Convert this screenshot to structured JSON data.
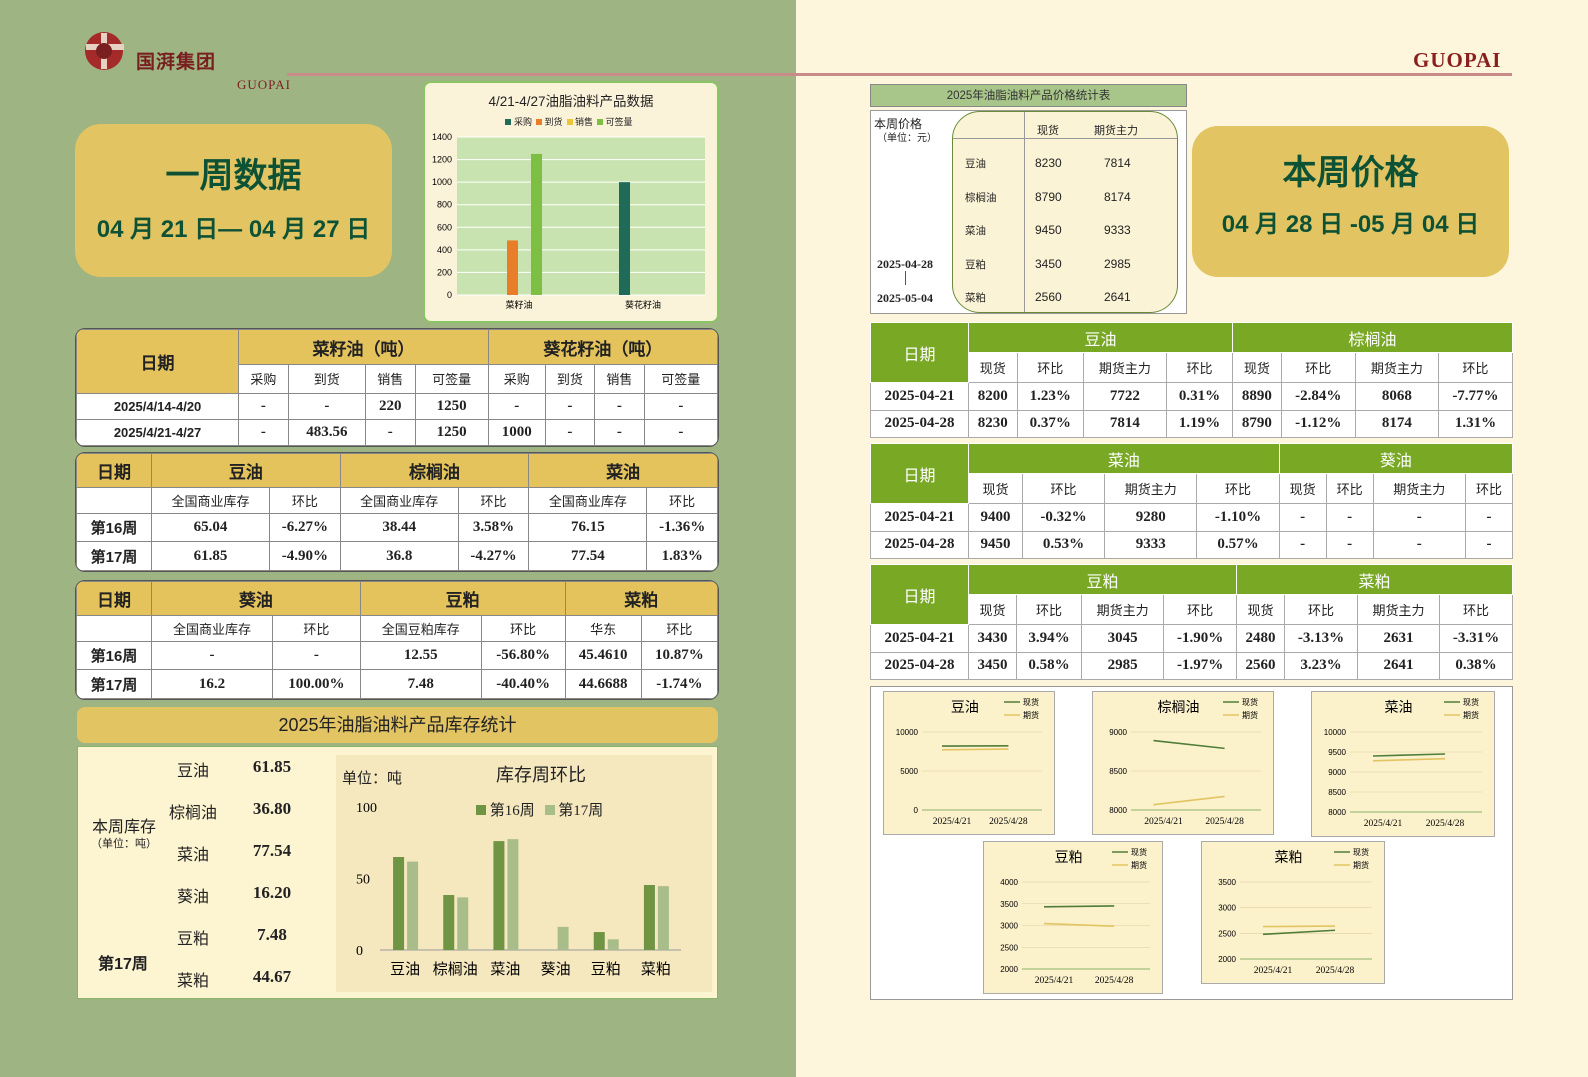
{
  "header": {
    "logo_cn": "国湃集团",
    "logo_en": "GUOPAI",
    "brand": "GUOPAI"
  },
  "left_pill": {
    "title": "一周数据",
    "dates": "04 月 21 日— 04 月 27 日"
  },
  "right_pill": {
    "title": "本周价格",
    "dates": "04 月 28 日 -05 月 04 日"
  },
  "chart_top": {
    "title": "4/21-4/27油脂油料产品数据",
    "legend": [
      "采购",
      "到货",
      "销售",
      "可签量"
    ],
    "yticks": [
      "1400",
      "1200",
      "1000",
      "800",
      "600",
      "400",
      "200",
      "0"
    ],
    "xcats": [
      "菜籽油",
      "葵花籽油"
    ]
  },
  "chart_data": [
    {
      "type": "bar",
      "title": "4/21-4/27油脂油料产品数据",
      "categories": [
        "菜籽油",
        "葵花籽油"
      ],
      "series": [
        {
          "name": "采购",
          "values": [
            0,
            1000
          ]
        },
        {
          "name": "到货",
          "values": [
            483.56,
            0
          ]
        },
        {
          "name": "销售",
          "values": [
            0,
            0
          ]
        },
        {
          "name": "可签量",
          "values": [
            1250,
            0
          ]
        }
      ],
      "ylim": [
        0,
        1400
      ],
      "colors": [
        "#1f6b57",
        "#e87d2a",
        "#f0c23b",
        "#7cbf42"
      ]
    },
    {
      "type": "bar",
      "title": "库存周环比",
      "categories": [
        "豆油",
        "棕榈油",
        "菜油",
        "葵油",
        "豆粕",
        "菜粕"
      ],
      "series": [
        {
          "name": "第16周",
          "values": [
            65.04,
            38.44,
            76.15,
            0,
            12.55,
            45.461
          ]
        },
        {
          "name": "第17周",
          "values": [
            61.85,
            36.8,
            77.54,
            16.2,
            7.48,
            44.6688
          ]
        }
      ],
      "ylim": [
        0,
        100
      ],
      "colors": [
        "#6e9444",
        "#a9bd8a"
      ]
    },
    {
      "type": "line",
      "title": "豆油",
      "x": [
        "2025/4/21",
        "2025/4/28"
      ],
      "series": [
        {
          "name": "现货",
          "values": [
            8200,
            8230
          ]
        },
        {
          "name": "期货",
          "values": [
            7722,
            7814
          ]
        }
      ],
      "ylim": [
        0,
        10000
      ],
      "yticks": [
        "10000",
        "5000",
        "0"
      ]
    },
    {
      "type": "line",
      "title": "棕榈油",
      "x": [
        "2025/4/21",
        "2025/4/28"
      ],
      "series": [
        {
          "name": "现货",
          "values": [
            8890,
            8790
          ]
        },
        {
          "name": "期货",
          "values": [
            8068,
            8174
          ]
        }
      ],
      "ylim": [
        8000,
        9000
      ],
      "yticks": [
        "9000",
        "8500",
        "8000"
      ]
    },
    {
      "type": "line",
      "title": "菜油",
      "x": [
        "2025/4/21",
        "2025/4/28"
      ],
      "series": [
        {
          "name": "现货",
          "values": [
            9400,
            9450
          ]
        },
        {
          "name": "期货",
          "values": [
            9280,
            9333
          ]
        }
      ],
      "ylim": [
        8000,
        10000
      ],
      "yticks": [
        "10000",
        "9500",
        "9000",
        "8500",
        "8000"
      ]
    },
    {
      "type": "line",
      "title": "豆粕",
      "x": [
        "2025/4/21",
        "2025/4/28"
      ],
      "series": [
        {
          "name": "现货",
          "values": [
            3430,
            3450
          ]
        },
        {
          "name": "期货",
          "values": [
            3045,
            2985
          ]
        }
      ],
      "ylim": [
        2000,
        4000
      ],
      "yticks": [
        "4000",
        "3500",
        "3000",
        "2500",
        "2000"
      ]
    },
    {
      "type": "line",
      "title": "菜粕",
      "x": [
        "2025/4/21",
        "2025/4/28"
      ],
      "series": [
        {
          "name": "现货",
          "values": [
            2480,
            2560
          ]
        },
        {
          "name": "期货",
          "values": [
            2631,
            2641
          ]
        }
      ],
      "ylim": [
        2000,
        3500
      ],
      "yticks": [
        "3500",
        "3000",
        "2500",
        "2000"
      ]
    }
  ],
  "table1": {
    "date_label": "日期",
    "group1": "菜籽油（吨）",
    "group2": "葵花籽油（吨）",
    "subs": [
      "采购",
      "到货",
      "销售",
      "可签量",
      "采购",
      "到货",
      "销售",
      "可签量"
    ],
    "rows": [
      {
        "date": "2025/4/14-4/20",
        "vals": [
          "-",
          "-",
          "220",
          "1250",
          "-",
          "-",
          "-",
          "-"
        ]
      },
      {
        "date": "2025/4/21-4/27",
        "vals": [
          "-",
          "483.56",
          "-",
          "1250",
          "1000",
          "-",
          "-",
          "-"
        ]
      }
    ]
  },
  "table2": {
    "date_label": "日期",
    "groups": [
      "豆油",
      "棕榈油",
      "菜油"
    ],
    "subs": [
      "全国商业库存",
      "环比",
      "全国商业库存",
      "环比",
      "全国商业库存",
      "环比"
    ],
    "rows": [
      {
        "date": "第16周",
        "vals": [
          "65.04",
          "-6.27%",
          "38.44",
          "3.58%",
          "76.15",
          "-1.36%"
        ]
      },
      {
        "date": "第17周",
        "vals": [
          "61.85",
          "-4.90%",
          "36.8",
          "-4.27%",
          "77.54",
          "1.83%"
        ]
      }
    ]
  },
  "table3": {
    "date_label": "日期",
    "groups": [
      "葵油",
      "豆粕",
      "菜粕"
    ],
    "subs": [
      "全国商业库存",
      "环比",
      "全国豆粕库存",
      "环比",
      "华东",
      "环比"
    ],
    "rows": [
      {
        "date": "第16周",
        "vals": [
          "-",
          "-",
          "12.55",
          "-56.80%",
          "45.4610",
          "10.87%"
        ]
      },
      {
        "date": "第17周",
        "vals": [
          "16.2",
          "100.00%",
          "7.48",
          "-40.40%",
          "44.6688",
          "-1.74%"
        ]
      }
    ]
  },
  "stock": {
    "banner": "2025年油脂油料产品库存统计",
    "label1": "本周库存",
    "label1_unit": "（单位：吨）",
    "label2": "第17周",
    "items": [
      {
        "name": "豆油",
        "val": "61.85"
      },
      {
        "name": "棕榈油",
        "val": "36.80"
      },
      {
        "name": "菜油",
        "val": "77.54"
      },
      {
        "name": "葵油",
        "val": "16.20"
      },
      {
        "name": "豆粕",
        "val": "7.48"
      },
      {
        "name": "菜粕",
        "val": "44.67"
      }
    ],
    "chart_title": "库存周环比",
    "unit": "单位：吨",
    "legend": [
      "第16周",
      "第17周"
    ],
    "yticks": [
      "100",
      "50",
      "0"
    ]
  },
  "price_box": {
    "banner": "2025年油脂油料产品价格统计表",
    "label": "本周价格",
    "unit": "（单位：元）",
    "date_from": "2025-04-28",
    "date_to": "2025-05-04",
    "col1": "现货",
    "col2": "期货主力",
    "rows": [
      {
        "name": "豆油",
        "a": "8230",
        "b": "7814"
      },
      {
        "name": "棕榈油",
        "a": "8790",
        "b": "8174"
      },
      {
        "name": "菜油",
        "a": "9450",
        "b": "9333"
      },
      {
        "name": "豆粕",
        "a": "3450",
        "b": "2985"
      },
      {
        "name": "菜粕",
        "a": "2560",
        "b": "2641"
      }
    ]
  },
  "price_tables": [
    {
      "date_label": "日期",
      "groups": [
        "豆油",
        "棕榈油"
      ],
      "subs": [
        "现货",
        "环比",
        "期货主力",
        "环比",
        "现货",
        "环比",
        "期货主力",
        "环比"
      ],
      "rows": [
        {
          "date": "2025-04-21",
          "vals": [
            "8200",
            "1.23%",
            "7722",
            "0.31%",
            "8890",
            "-2.84%",
            "8068",
            "-7.77%"
          ]
        },
        {
          "date": "2025-04-28",
          "vals": [
            "8230",
            "0.37%",
            "7814",
            "1.19%",
            "8790",
            "-1.12%",
            "8174",
            "1.31%"
          ]
        }
      ]
    },
    {
      "date_label": "日期",
      "groups": [
        "菜油",
        "葵油"
      ],
      "subs": [
        "现货",
        "环比",
        "期货主力",
        "环比",
        "现货",
        "环比",
        "期货主力",
        "环比"
      ],
      "rows": [
        {
          "date": "2025-04-21",
          "vals": [
            "9400",
            "-0.32%",
            "9280",
            "-1.10%",
            "-",
            "-",
            "-",
            "-"
          ]
        },
        {
          "date": "2025-04-28",
          "vals": [
            "9450",
            "0.53%",
            "9333",
            "0.57%",
            "-",
            "-",
            "-",
            "-"
          ]
        }
      ]
    },
    {
      "date_label": "日期",
      "groups": [
        "豆粕",
        "菜粕"
      ],
      "subs": [
        "现货",
        "环比",
        "期货主力",
        "环比",
        "现货",
        "环比",
        "期货主力",
        "环比"
      ],
      "rows": [
        {
          "date": "2025-04-21",
          "vals": [
            "3430",
            "3.94%",
            "3045",
            "-1.90%",
            "2480",
            "-3.13%",
            "2631",
            "-3.31%"
          ]
        },
        {
          "date": "2025-04-28",
          "vals": [
            "3450",
            "0.58%",
            "2985",
            "-1.97%",
            "2560",
            "3.23%",
            "2641",
            "0.38%"
          ]
        }
      ]
    }
  ],
  "mini_legend": [
    "现货",
    "期货"
  ]
}
